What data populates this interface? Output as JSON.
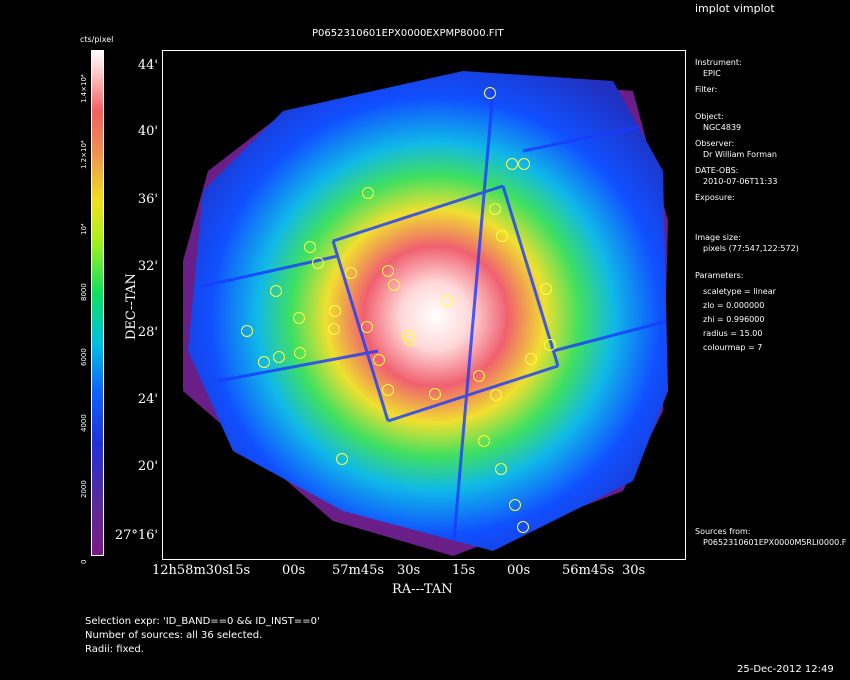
{
  "window_title": "implot vimplot",
  "plot_title": "P0652310601EPX0000EXPMP8000.FIT",
  "colorbar": {
    "unit_label": "cts/pixel",
    "tick_labels": [
      "0",
      "2000",
      "4000",
      "6000",
      "8000",
      "10⁴",
      "1.2×10⁴",
      "1.4×10⁴"
    ]
  },
  "axes": {
    "xlabel": "RA---TAN",
    "ylabel": "DEC--TAN",
    "x_ticks": [
      "12h58m30s",
      "15s",
      "00s",
      "57m45s",
      "30s",
      "15s",
      "00s",
      "56m45s",
      "30s"
    ],
    "y_ticks": [
      "44'",
      "40'",
      "36'",
      "32'",
      "28'",
      "24'",
      "20'",
      "27°16'"
    ]
  },
  "info_panel": {
    "instrument_label": "Instrument:",
    "instrument_value": "EPIC",
    "filter_label": "Filter:",
    "object_label": "Object:",
    "object_value": "NGC4839",
    "observer_label": "Observer:",
    "observer_value": "Dr William Forman",
    "date_label": "DATE-OBS:",
    "date_value": "2010-07-06T11:33",
    "exposure_label": "Exposure:",
    "image_size_label": "Image size:",
    "image_size_value": "pixels (77:547,122:572)",
    "parameters_label": "Parameters:",
    "param_scaletype": "scaletype = linear",
    "param_zlo": "zlo = 0.000000",
    "param_zhi": "zhi = 0.996000",
    "param_radius": "radius = 15.00",
    "param_colourmap": "colourmap = 7",
    "sources_label": "Sources from:",
    "sources_value": "P0652310601EPX0000M5RLI0000.F"
  },
  "footer": {
    "selection_expr": "Selection expr: 'ID_BAND==0 && ID_INST==0'",
    "num_sources": "Number of sources: all 36 selected.",
    "radii": "Radii: fixed.",
    "timestamp": "25-Dec-2012 12:49"
  },
  "colors": {
    "background": "#000000",
    "outer": "#6a1e88",
    "core": "#ffffff",
    "source_circle": "#ffff40"
  }
}
